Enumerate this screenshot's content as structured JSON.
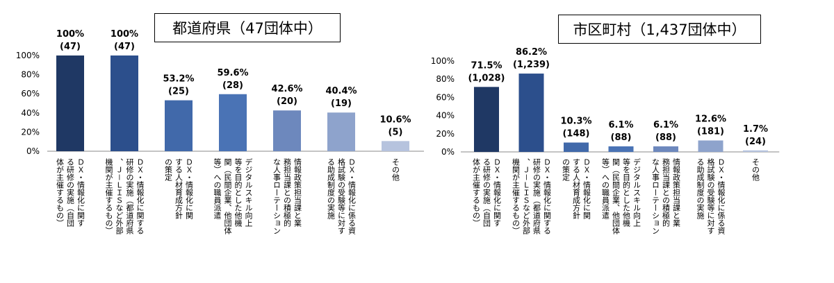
{
  "chart_data": [
    {
      "type": "bar",
      "title": "都道府県（47団体中）",
      "ylim": [
        0,
        100
      ],
      "yticks": [
        "0%",
        "20%",
        "40%",
        "60%",
        "80%",
        "100%"
      ],
      "grid": false,
      "categories": [
        "ＤＸ・情報化に関する研修の実施（自団体が主催するもの）",
        "ＤＸ・情報化に関する研修の実施（都道府県、Ｊ－ＬＩＳなど外部機関が主催するもの）",
        "ＤＸ・情報化に関する人材育成方針の策定",
        "デジタルスキル向上等を目的とした他機関（民間企業、他団体等）への職員派遣",
        "情報政策担当課と業務担当課との積極的な人事ローテーション",
        "ＤＸ・情報化に係る資格試験の受験等に対する助成制度の実施",
        "その他"
      ],
      "category_columns": [
        [
          "ＤＸ・情報化に関す",
          "る研修の実施（自団",
          "体が主催するもの）"
        ],
        [
          "ＤＸ・情報化に関する",
          "研修の実施（都道府県",
          "、Ｊ－ＬＩＳなど外部",
          "機関が主催するもの）"
        ],
        [
          "ＤＸ・情報化に関",
          "する人材育成方針",
          "の策定"
        ],
        [
          "デジタルスキル向上",
          "等を目的とした他機",
          "関（民間企業、他団体",
          "等）への職員派遣"
        ],
        [
          "情報政策担当課と業",
          "務担当課との積極的",
          "な人事ローテーション"
        ],
        [
          "ＤＸ・情報化に係る資",
          "格試験の受験等に対す",
          "る助成制度の実施"
        ],
        [
          "その他"
        ]
      ],
      "values": [
        100,
        100,
        53.2,
        59.6,
        42.6,
        40.4,
        10.6
      ],
      "percent_labels": [
        "100%",
        "100%",
        "53.2%",
        "59.6%",
        "42.6%",
        "40.4%",
        "10.6%"
      ],
      "count_labels": [
        "(47)",
        "(47)",
        "(25)",
        "(28)",
        "(20)",
        "(19)",
        "(5)"
      ]
    },
    {
      "type": "bar",
      "title": "市区町村（1,437団体中）",
      "ylim": [
        0,
        100
      ],
      "yticks": [
        "0%",
        "20%",
        "40%",
        "60%",
        "80%",
        "100%"
      ],
      "grid": false,
      "categories": [
        "ＤＸ・情報化に関する研修の実施（自団体が主催するもの）",
        "ＤＸ・情報化に関する研修の実施（都道府県、Ｊ－ＬＩＳなど外部機関が主催するもの）",
        "ＤＸ・情報化に関する人材育成方針の策定",
        "デジタルスキル向上等を目的とした他機関（民間企業、他団体等）への職員派遣",
        "情報政策担当課と業務担当課との積極的な人事ローテーション",
        "ＤＸ・情報化に係る資格試験の受験等に対する助成制度の実施",
        "その他"
      ],
      "category_columns": [
        [
          "ＤＸ・情報化に関す",
          "る研修の実施（自団",
          "体が主催するもの）"
        ],
        [
          "ＤＸ・情報化に関する",
          "研修の実施（都道府県",
          "、Ｊ－ＬＩＳなど外部",
          "機関が主催するもの）"
        ],
        [
          "ＤＸ・情報化に関",
          "する人材育成方針",
          "の策定"
        ],
        [
          "デジタルスキル向上",
          "等を目的とした他機",
          "関（民間企業、他団体",
          "等）への職員派遣"
        ],
        [
          "情報政策担当課と業",
          "務担当課との積極的",
          "な人事ローテーション"
        ],
        [
          "ＤＸ・情報化に係る資",
          "格試験の受験等に対す",
          "る助成制度の実施"
        ],
        [
          "その他"
        ]
      ],
      "values": [
        71.5,
        86.2,
        10.3,
        6.1,
        6.1,
        12.6,
        1.7
      ],
      "percent_labels": [
        "71.5%",
        "86.2%",
        "10.3%",
        "6.1%",
        "6.1%",
        "12.6%",
        "1.7%"
      ],
      "count_labels": [
        "(1,028)",
        "(1,239)",
        "(148)",
        "(88)",
        "(88)",
        "(181)",
        "(24)"
      ]
    }
  ],
  "colors": {
    "bars": [
      "#1f3864",
      "#2c4f8c",
      "#4169aa",
      "#4a73b5",
      "#6d88bd",
      "#8ea3cc",
      "#b6c3de"
    ],
    "axis": "#888888",
    "text": "#000000"
  }
}
